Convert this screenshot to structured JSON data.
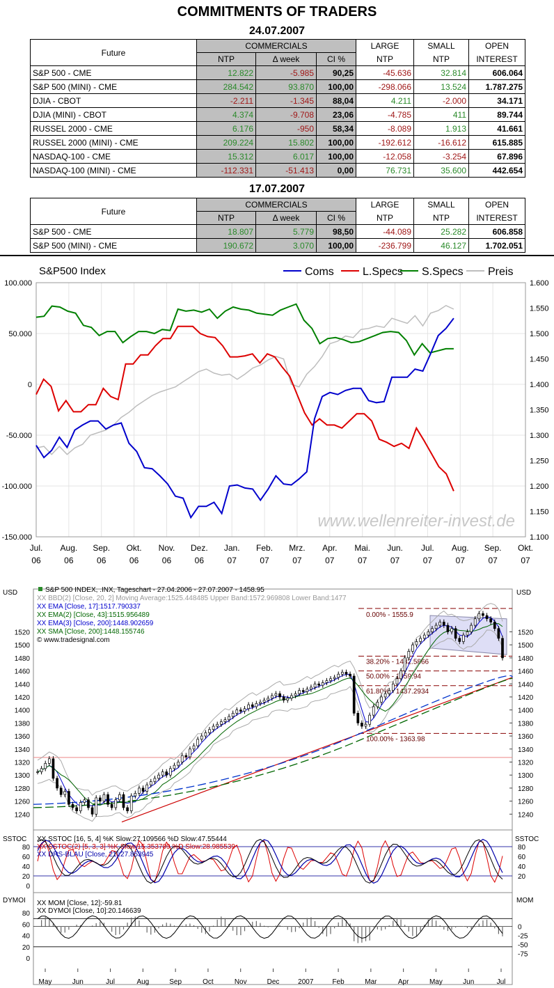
{
  "page_title": "COMMITMENTS OF TRADERS",
  "tables": [
    {
      "date": "24.07.2007",
      "headers": {
        "future": "Future",
        "commercials": "COMMERCIALS",
        "ntp": "NTP",
        "week": "Δ week",
        "ci": "CI %",
        "large1": "LARGE",
        "large2": "NTP",
        "small1": "SMALL",
        "small2": "NTP",
        "open1": "OPEN",
        "open2": "INTEREST"
      },
      "rows": [
        {
          "name": "S&P 500 - CME",
          "ntp": "12.822",
          "week": "-5.985",
          "ci": "90,25",
          "large": "-45.636",
          "small": "32.814",
          "oi": "606.064"
        },
        {
          "name": "S&P 500 (MINI) - CME",
          "ntp": "284.542",
          "week": "93.870",
          "ci": "100,00",
          "large": "-298.066",
          "small": "13.524",
          "oi": "1.787.275"
        },
        {
          "name": "DJIA - CBOT",
          "ntp": "-2.211",
          "week": "-1.345",
          "ci": "88,04",
          "large": "4.211",
          "small": "-2.000",
          "oi": "34.171"
        },
        {
          "name": "DJIA (MINI) - CBOT",
          "ntp": "4.374",
          "week": "-9.708",
          "ci": "23,06",
          "large": "-4.785",
          "small": "411",
          "oi": "89.744"
        },
        {
          "name": "RUSSEL 2000 - CME",
          "ntp": "6.176",
          "week": "-950",
          "ci": "58,34",
          "large": "-8.089",
          "small": "1.913",
          "oi": "41.661"
        },
        {
          "name": "RUSSEL 2000 (MINI) - CME",
          "ntp": "209.224",
          "week": "15.802",
          "ci": "100,00",
          "large": "-192.612",
          "small": "-16.612",
          "oi": "615.885"
        },
        {
          "name": "NASDAQ-100 - CME",
          "ntp": "15.312",
          "week": "6.017",
          "ci": "100,00",
          "large": "-12.058",
          "small": "-3.254",
          "oi": "67.896"
        },
        {
          "name": "NASDAQ-100 (MINI) - CME",
          "ntp": "-112.331",
          "week": "-51.413",
          "ci": "0,00",
          "large": "76.731",
          "small": "35.600",
          "oi": "442.654"
        }
      ]
    },
    {
      "date": "17.07.2007",
      "headers": {
        "future": "Future",
        "commercials": "COMMERCIALS",
        "ntp": "NTP",
        "week": "Δ week",
        "ci": "CI %",
        "large1": "LARGE",
        "large2": "NTP",
        "small1": "SMALL",
        "small2": "NTP",
        "open1": "OPEN",
        "open2": "INTEREST"
      },
      "rows": [
        {
          "name": "S&P 500 - CME",
          "ntp": "18.807",
          "week": "5.779",
          "ci": "98,50",
          "large": "-44.089",
          "small": "25.282",
          "oi": "606.858"
        },
        {
          "name": "S&P 500 (MINI) - CME",
          "ntp": "190.672",
          "week": "3.070",
          "ci": "100,00",
          "large": "-236.799",
          "small": "46.127",
          "oi": "1.702.051"
        }
      ]
    }
  ],
  "chart_data": [
    {
      "type": "line",
      "title": "S&P500 Index",
      "watermark": "www.wellenreiter-invest.de",
      "legend": [
        "Coms",
        "L.Specs",
        "S.Specs",
        "Preis"
      ],
      "colors": {
        "Coms": "#0000cc",
        "L.Specs": "#dd0000",
        "S.Specs": "#008000",
        "Preis": "#bdbdbd"
      },
      "ylim": [
        -150000,
        100000
      ],
      "y2lim": [
        1100,
        1600
      ],
      "yticks": [
        "100.000",
        "50.000",
        "0",
        "-50.000",
        "-100.000",
        "-150.000"
      ],
      "y2ticks": [
        "1.600",
        "1.550",
        "1.500",
        "1.450",
        "1.400",
        "1.350",
        "1.300",
        "1.250",
        "1.200",
        "1.150",
        "1.100"
      ],
      "xticks": [
        [
          "Jul.",
          "06"
        ],
        [
          "Aug.",
          "06"
        ],
        [
          "Sep.",
          "06"
        ],
        [
          "Okt.",
          "06"
        ],
        [
          "Nov.",
          "06"
        ],
        [
          "Dez.",
          "06"
        ],
        [
          "Jan.",
          "07"
        ],
        [
          "Feb.",
          "07"
        ],
        [
          "Mrz.",
          "07"
        ],
        [
          "Apr.",
          "07"
        ],
        [
          "Mai.",
          "07"
        ],
        [
          "Jun.",
          "07"
        ],
        [
          "Jul.",
          "07"
        ],
        [
          "Aug.",
          "07"
        ],
        [
          "Sep.",
          "07"
        ],
        [
          "Okt.",
          "07"
        ]
      ],
      "series": [
        {
          "name": "Coms",
          "values": [
            -60000,
            -72000,
            -65000,
            -52000,
            -62000,
            -45000,
            -40000,
            -36000,
            -36000,
            -44000,
            -40000,
            -38000,
            -58000,
            -66000,
            -82000,
            -83000,
            -90000,
            -98000,
            -110000,
            -112000,
            -131000,
            -120000,
            -120000,
            -116000,
            -127000,
            -100000,
            -99000,
            -102000,
            -103000,
            -114000,
            -103000,
            -90000,
            -98000,
            -99000,
            -93000,
            -86000,
            -34000,
            -12000,
            -8000,
            -10000,
            -6000,
            -4000,
            -4000,
            -16000,
            -18000,
            -17000,
            7000,
            7000,
            7000,
            15000,
            13000,
            30000,
            48000,
            55000,
            65000
          ],
          "y2": null
        },
        {
          "name": "L.Specs",
          "values": [
            -10000,
            5000,
            -2000,
            -26000,
            -16000,
            -27000,
            -27000,
            -20000,
            -20000,
            -4000,
            -12000,
            -15000,
            20000,
            20000,
            29000,
            29000,
            38000,
            45000,
            45000,
            57000,
            57000,
            57000,
            50000,
            47000,
            46000,
            38000,
            27000,
            27000,
            28000,
            30000,
            21000,
            30000,
            27000,
            17000,
            8000,
            -10000,
            -28000,
            -40000,
            -34000,
            -40000,
            -40000,
            -43000,
            -36000,
            -29000,
            -29000,
            -36000,
            -54000,
            -57000,
            -61000,
            -58000,
            -63000,
            -43000,
            -55000,
            -68000,
            -81000,
            -88000,
            -105000
          ]
        },
        {
          "name": "S.Specs",
          "values": [
            66000,
            67000,
            77000,
            76000,
            72000,
            70000,
            58000,
            56000,
            48000,
            52000,
            52000,
            41000,
            47000,
            52000,
            52000,
            50000,
            54000,
            53000,
            74000,
            72000,
            73000,
            71000,
            74000,
            65000,
            72000,
            76000,
            74000,
            73000,
            70000,
            69000,
            68000,
            73000,
            76000,
            79000,
            63000,
            55000,
            40000,
            45000,
            46000,
            44000,
            41000,
            42000,
            45000,
            48000,
            51000,
            52000,
            51000,
            43000,
            29000,
            40000,
            31000,
            33000,
            35000,
            35000
          ],
          "y2": null
        },
        {
          "name": "Preis",
          "values": [
            1275,
            1278,
            1262,
            1278,
            1262,
            1275,
            1282,
            1300,
            1305,
            1310,
            1320,
            1335,
            1345,
            1358,
            1368,
            1378,
            1385,
            1390,
            1395,
            1405,
            1415,
            1425,
            1430,
            1422,
            1418,
            1420,
            1410,
            1420,
            1432,
            1438,
            1448,
            1455,
            1450,
            1400,
            1395,
            1420,
            1435,
            1455,
            1480,
            1485,
            1495,
            1492,
            1508,
            1510,
            1515,
            1512,
            1530,
            1525,
            1520,
            1535,
            1515,
            1540,
            1545,
            1555,
            1548
          ],
          "axis": "right"
        }
      ]
    },
    {
      "type": "candlestick",
      "title": "S&P 500 INDEX, .INX, Tageschart - 27.04.2006 - 27.07.2007 - 1458.95",
      "currency_left": "USD",
      "currency_right": "USD",
      "legend": [
        "BBD(2) [Close, 20, 2] Moving Average:1525.448485 Upper Band:1572.969808 Lower Band:1477",
        "EMA [Close, 17]:1517.790337",
        "EMA(2) [Close, 43]:1515.956489",
        "EMA(3) [Close, 200]:1448.902659",
        "SMA [Close, 200]:1448.155746",
        "© www.tradesignal.com"
      ],
      "ylim": [
        1220,
        1575
      ],
      "yticks": [
        "1520",
        "1500",
        "1480",
        "1460",
        "1440",
        "1420",
        "1400",
        "1380",
        "1360",
        "1340",
        "1320",
        "1300",
        "1280",
        "1260",
        "1240"
      ],
      "fib_levels": [
        {
          "label": "0.00% - 1555.9",
          "value": 1555.9
        },
        {
          "label": "38.20% - 1482.5866",
          "value": 1482.5866
        },
        {
          "label": "50.00% - 1459.94",
          "value": 1459.94
        },
        {
          "label": "61.80% - 1437.2934",
          "value": 1437.2934
        },
        {
          "label": "100.00% - 1363.98",
          "value": 1363.98
        }
      ],
      "close": [
        1305,
        1310,
        1318,
        1325,
        1295,
        1280,
        1270,
        1275,
        1255,
        1250,
        1245,
        1258,
        1262,
        1250,
        1240,
        1265,
        1260,
        1270,
        1255,
        1250,
        1262,
        1270,
        1250,
        1245,
        1268,
        1272,
        1280,
        1275,
        1285,
        1290,
        1295,
        1300,
        1305,
        1300,
        1310,
        1315,
        1320,
        1330,
        1328,
        1340,
        1345,
        1355,
        1360,
        1365,
        1370,
        1375,
        1378,
        1382,
        1385,
        1390,
        1395,
        1400,
        1398,
        1402,
        1408,
        1405,
        1410,
        1412,
        1415,
        1418,
        1422,
        1425,
        1420,
        1415,
        1418,
        1422,
        1425,
        1430,
        1428,
        1432,
        1435,
        1440,
        1438,
        1442,
        1445,
        1448,
        1450,
        1455,
        1458,
        1455,
        1452,
        1395,
        1380,
        1375,
        1378,
        1392,
        1405,
        1412,
        1420,
        1425,
        1430,
        1440,
        1448,
        1460,
        1480,
        1490,
        1500,
        1505,
        1510,
        1515,
        1520,
        1525,
        1530,
        1535,
        1530,
        1520,
        1525,
        1510,
        1505,
        1515,
        1520,
        1530,
        1540,
        1548,
        1545,
        1540,
        1535,
        1525,
        1510,
        1480
      ]
    },
    {
      "type": "line",
      "title": "SSTOC",
      "legend": [
        "SSTOC [16, 5, 4] %K Slow:27.109566 %D Slow:47.55444",
        "SSTOC(2) [5, 3, 3] %K Slow:15.353709 %D Slow:28.985539",
        "DRS-BLAU [Close, 21]:27.853945"
      ],
      "ylim": [
        0,
        100
      ],
      "yticks": [
        "80",
        "60",
        "40",
        "20",
        "0"
      ],
      "y2ticks": [
        "80",
        "60",
        "40",
        "20"
      ]
    },
    {
      "type": "line",
      "title": "DYMOI",
      "right_title": "MOM",
      "legend": [
        "MOM [Close, 12]:-59.81",
        "DYMOI [Close, 10]:20.146639"
      ],
      "yticks": [
        "80",
        "60",
        "40",
        "20",
        "0"
      ],
      "y2ticks": [
        "0",
        "-25",
        "-50",
        "-75"
      ],
      "xticks": [
        "May",
        "Jun",
        "Jul",
        "Aug",
        "Sep",
        "Oct",
        "Nov",
        "Dec",
        "2007",
        "Feb",
        "Mar",
        "Apr",
        "May",
        "Jun",
        "Jul"
      ]
    }
  ]
}
